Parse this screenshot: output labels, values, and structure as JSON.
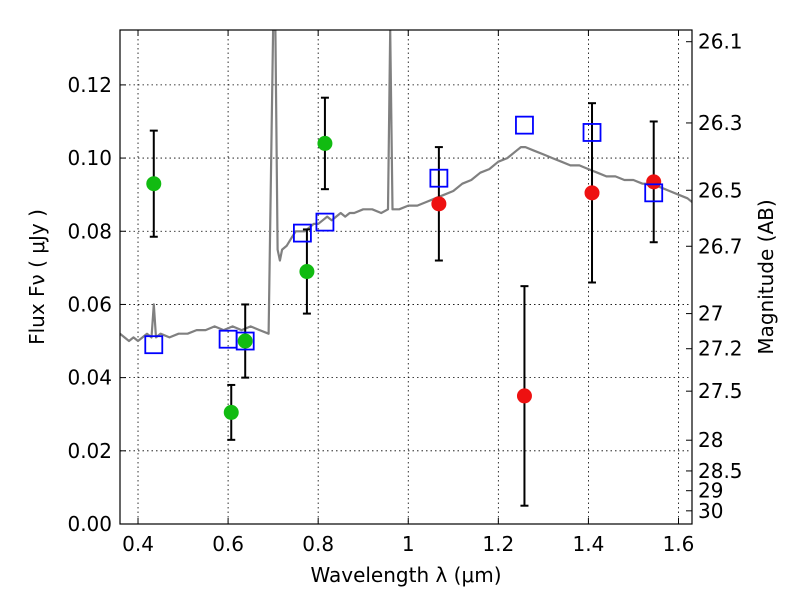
{
  "chart_data": {
    "type": "scatter",
    "xlabel": "Wavelength  λ (μm)",
    "ylabel": "Flux  Fν  ( μJy )",
    "ylabel_right": "Magnitude (AB)",
    "xlim": [
      0.36,
      1.63
    ],
    "ylim": [
      0.0,
      0.135
    ],
    "x_ticks": [
      0.4,
      0.6,
      0.8,
      1.0,
      1.2,
      1.4,
      1.6
    ],
    "x_tick_labels": [
      "0.4",
      "0.6",
      "0.8",
      "1",
      "1.2",
      "1.4",
      "1.6"
    ],
    "y_ticks": [
      0.0,
      0.02,
      0.04,
      0.06,
      0.08,
      0.1,
      0.12
    ],
    "y_tick_labels": [
      "0.00",
      "0.02",
      "0.04",
      "0.06",
      "0.08",
      "0.10",
      "0.12"
    ],
    "right_ticks": [
      {
        "label": "26.1",
        "flux": 0.1318
      },
      {
        "label": "26.3",
        "flux": 0.1096
      },
      {
        "label": "26.5",
        "flux": 0.0912
      },
      {
        "label": "26.7",
        "flux": 0.0759
      },
      {
        "label": "27",
        "flux": 0.0575
      },
      {
        "label": "27.2",
        "flux": 0.0479
      },
      {
        "label": "27.5",
        "flux": 0.0363
      },
      {
        "label": "28",
        "flux": 0.0229
      },
      {
        "label": "28.5",
        "flux": 0.0145
      },
      {
        "label": "29",
        "flux": 0.0091
      },
      {
        "label": "30",
        "flux": 0.0036
      }
    ],
    "grid": true,
    "colors": {
      "spectrum": "#808080",
      "green": "#11bb11",
      "red": "#ee1111",
      "model": "#0000ff",
      "errorbar": "#000000"
    },
    "series": [
      {
        "type": "line",
        "color": "#808080",
        "x": [
          0.36,
          0.37,
          0.38,
          0.39,
          0.4,
          0.41,
          0.42,
          0.43,
          0.435,
          0.44,
          0.45,
          0.47,
          0.49,
          0.51,
          0.53,
          0.55,
          0.57,
          0.59,
          0.61,
          0.63,
          0.65,
          0.67,
          0.69,
          0.7,
          0.705,
          0.71,
          0.715,
          0.72,
          0.73,
          0.74,
          0.75,
          0.76,
          0.77,
          0.78,
          0.79,
          0.8,
          0.81,
          0.82,
          0.83,
          0.84,
          0.85,
          0.86,
          0.87,
          0.88,
          0.9,
          0.92,
          0.94,
          0.955,
          0.96,
          0.965,
          0.98,
          1.0,
          1.02,
          1.04,
          1.06,
          1.08,
          1.1,
          1.12,
          1.14,
          1.16,
          1.18,
          1.2,
          1.22,
          1.24,
          1.25,
          1.26,
          1.28,
          1.3,
          1.32,
          1.34,
          1.36,
          1.38,
          1.4,
          1.42,
          1.44,
          1.46,
          1.48,
          1.5,
          1.52,
          1.54,
          1.56,
          1.58,
          1.6,
          1.62,
          1.63
        ],
        "y": [
          0.052,
          0.051,
          0.05,
          0.051,
          0.05,
          0.051,
          0.052,
          0.051,
          0.06,
          0.051,
          0.052,
          0.051,
          0.052,
          0.052,
          0.053,
          0.053,
          0.054,
          0.053,
          0.054,
          0.053,
          0.054,
          0.053,
          0.052,
          0.135,
          0.135,
          0.075,
          0.072,
          0.075,
          0.076,
          0.078,
          0.08,
          0.08,
          0.08,
          0.081,
          0.082,
          0.082,
          0.083,
          0.084,
          0.083,
          0.084,
          0.085,
          0.084,
          0.085,
          0.085,
          0.086,
          0.086,
          0.085,
          0.086,
          0.135,
          0.086,
          0.086,
          0.087,
          0.087,
          0.088,
          0.089,
          0.09,
          0.091,
          0.093,
          0.094,
          0.096,
          0.097,
          0.099,
          0.1,
          0.102,
          0.103,
          0.103,
          0.102,
          0.101,
          0.1,
          0.099,
          0.098,
          0.098,
          0.097,
          0.096,
          0.095,
          0.095,
          0.094,
          0.094,
          0.093,
          0.093,
          0.092,
          0.091,
          0.09,
          0.089,
          0.088
        ]
      },
      {
        "type": "errorbar",
        "color": "#11bb11",
        "x": [
          0.435,
          0.607,
          0.638,
          0.775,
          0.815
        ],
        "y": [
          0.093,
          0.0305,
          0.05,
          0.069,
          0.104
        ],
        "yerr": [
          0.0145,
          0.0075,
          0.01,
          0.0115,
          0.0125
        ]
      },
      {
        "type": "errorbar",
        "color": "#ee1111",
        "x": [
          1.068,
          1.258,
          1.408,
          1.545
        ],
        "y": [
          0.0875,
          0.035,
          0.0905,
          0.0935
        ],
        "yerr": [
          0.0155,
          0.03,
          0.0245,
          0.0165
        ]
      },
      {
        "type": "scatter",
        "marker": "square",
        "color": "#0000ff",
        "x": [
          0.435,
          0.6,
          0.638,
          0.765,
          0.815,
          1.068,
          1.258,
          1.408,
          1.545
        ],
        "y": [
          0.049,
          0.0505,
          0.05,
          0.0795,
          0.0825,
          0.0945,
          0.109,
          0.107,
          0.0905
        ]
      }
    ]
  }
}
